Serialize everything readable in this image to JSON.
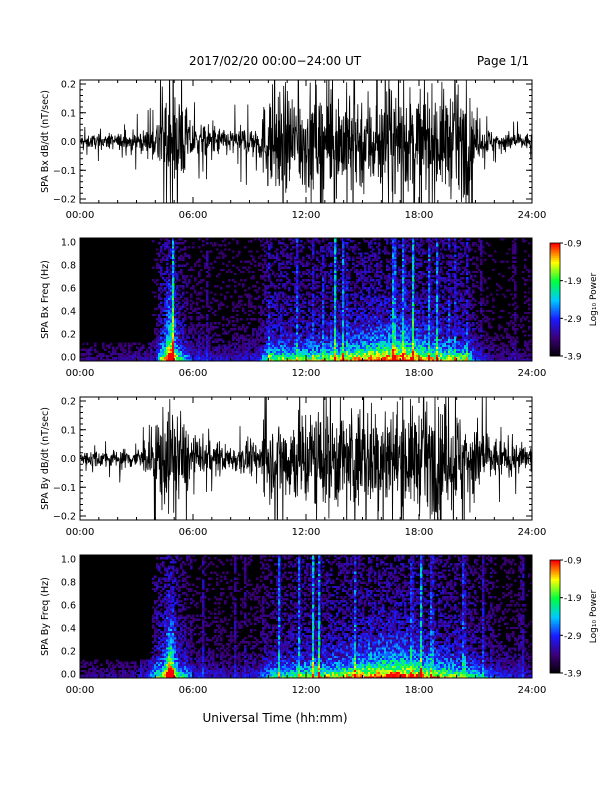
{
  "header": {
    "title": "2017/02/20  00:00−24:00 UT",
    "page": "Page 1/1"
  },
  "xlabel": "Universal Time (hh:mm)",
  "time_ticks": [
    "00:00",
    "06:00",
    "12:00",
    "18:00",
    "24:00"
  ],
  "colorbar": {
    "label": "Log₁₀ Power",
    "ticks": [
      "-0.9",
      "-1.9",
      "-2.9",
      "-3.9"
    ],
    "range": [
      -3.9,
      -0.9
    ]
  },
  "chart_data": [
    {
      "type": "line",
      "ylabel": "SPA Bx dB/dt (nT/sec)",
      "xlim": [
        0,
        24
      ],
      "ylim": [
        -0.2,
        0.2
      ],
      "yticks": [
        "0.2",
        "0.1",
        "0.0",
        "−0.1",
        "−0.2"
      ],
      "series": [
        {
          "color": "#000000",
          "x": [
            0,
            2,
            4,
            4.3,
            5,
            5.5,
            6,
            8,
            9.5,
            10,
            12,
            14,
            16,
            18,
            20,
            20.6,
            21,
            22,
            24
          ],
          "amplitude": [
            0.025,
            0.03,
            0.05,
            0.2,
            0.2,
            0.15,
            0.07,
            0.05,
            0.07,
            0.2,
            0.2,
            0.2,
            0.2,
            0.2,
            0.2,
            0.2,
            0.08,
            0.04,
            0.03
          ]
        }
      ]
    },
    {
      "type": "heatmap",
      "ylabel": "SPA Bx Freq (Hz)",
      "xlim": [
        0,
        24
      ],
      "ylim": [
        0,
        1
      ],
      "yticks": [
        "1.0",
        "0.8",
        "0.6",
        "0.4",
        "0.2",
        "0.0"
      ],
      "colormap": [
        "#000000",
        "#3b0075",
        "#1a1aff",
        "#00c8ff",
        "#00ff40",
        "#ffff00",
        "#ff0000"
      ],
      "zlim": [
        -3.9,
        -0.9
      ]
    },
    {
      "type": "line",
      "ylabel": "SPA By dB/dt (nT/sec)",
      "xlim": [
        0,
        24
      ],
      "ylim": [
        -0.2,
        0.2
      ],
      "yticks": [
        "0.2",
        "0.1",
        "0.0",
        "−0.1",
        "−0.2"
      ],
      "series": [
        {
          "color": "#000000",
          "x": [
            0,
            2,
            3.5,
            4.2,
            5,
            5.6,
            6,
            8,
            9.5,
            10,
            12,
            14,
            16,
            18,
            20,
            21,
            22,
            24
          ],
          "amplitude": [
            0.03,
            0.035,
            0.05,
            0.2,
            0.2,
            0.15,
            0.07,
            0.05,
            0.07,
            0.14,
            0.2,
            0.2,
            0.2,
            0.2,
            0.2,
            0.15,
            0.08,
            0.05
          ]
        }
      ]
    },
    {
      "type": "heatmap",
      "ylabel": "SPA By Freq (Hz)",
      "xlim": [
        0,
        24
      ],
      "ylim": [
        0,
        1
      ],
      "yticks": [
        "1.0",
        "0.8",
        "0.6",
        "0.4",
        "0.2",
        "0.0"
      ],
      "colormap": [
        "#000000",
        "#3b0075",
        "#1a1aff",
        "#00c8ff",
        "#00ff40",
        "#ffff00",
        "#ff0000"
      ],
      "zlim": [
        -3.9,
        -0.9
      ]
    }
  ]
}
